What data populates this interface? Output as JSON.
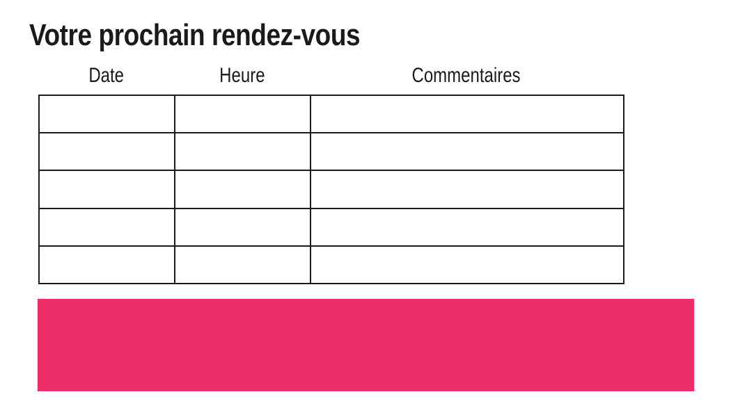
{
  "page": {
    "title": "Votre prochain rendez-vous"
  },
  "appointments_table": {
    "columns": [
      {
        "label": "Date"
      },
      {
        "label": "Heure"
      },
      {
        "label": "Commentaires"
      }
    ],
    "rows": [
      [
        "",
        "",
        ""
      ],
      [
        "",
        "",
        ""
      ],
      [
        "",
        "",
        ""
      ],
      [
        "",
        "",
        ""
      ],
      [
        "",
        "",
        ""
      ]
    ]
  },
  "colors": {
    "accent_pink": "#ED2E68",
    "text_dark": "#1A1A1A",
    "table_border": "#1A1A1A",
    "background": "#FFFFFF"
  }
}
